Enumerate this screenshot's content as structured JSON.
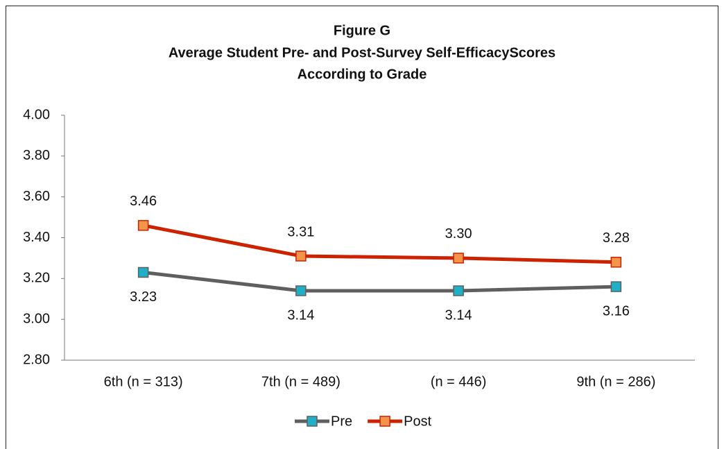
{
  "chart_data": {
    "type": "line",
    "title": [
      "Figure G",
      "Average Student Pre- and Post-Survey Self-EfficacyScores",
      "According to Grade"
    ],
    "categories": [
      "6th (n = 313)",
      "7th (n = 489)",
      "(n = 446)",
      "9th (n = 286)"
    ],
    "series": [
      {
        "name": "Pre",
        "color": "#5f5f5f",
        "marker_color": "#1fb0c8",
        "values": [
          3.23,
          3.14,
          3.14,
          3.16
        ]
      },
      {
        "name": "Post",
        "color": "#cc2200",
        "marker_color": "#f4944a",
        "values": [
          3.46,
          3.31,
          3.3,
          3.28
        ],
        "value_labels": [
          "3.46",
          "3.31",
          "3.30",
          "3.28"
        ]
      }
    ],
    "ylim": [
      2.8,
      4.0
    ],
    "yticks": [
      {
        "value": 2.8,
        "label": "2.80"
      },
      {
        "value": 3.0,
        "label": "3.00"
      },
      {
        "value": 3.2,
        "label": "3.20"
      },
      {
        "value": 3.4,
        "label": "3.40"
      },
      {
        "value": 3.6,
        "label": "3.60"
      },
      {
        "value": 3.8,
        "label": "3.80"
      },
      {
        "value": 4.0,
        "label": "4.00"
      }
    ],
    "grid": false,
    "legend": "bottom"
  }
}
